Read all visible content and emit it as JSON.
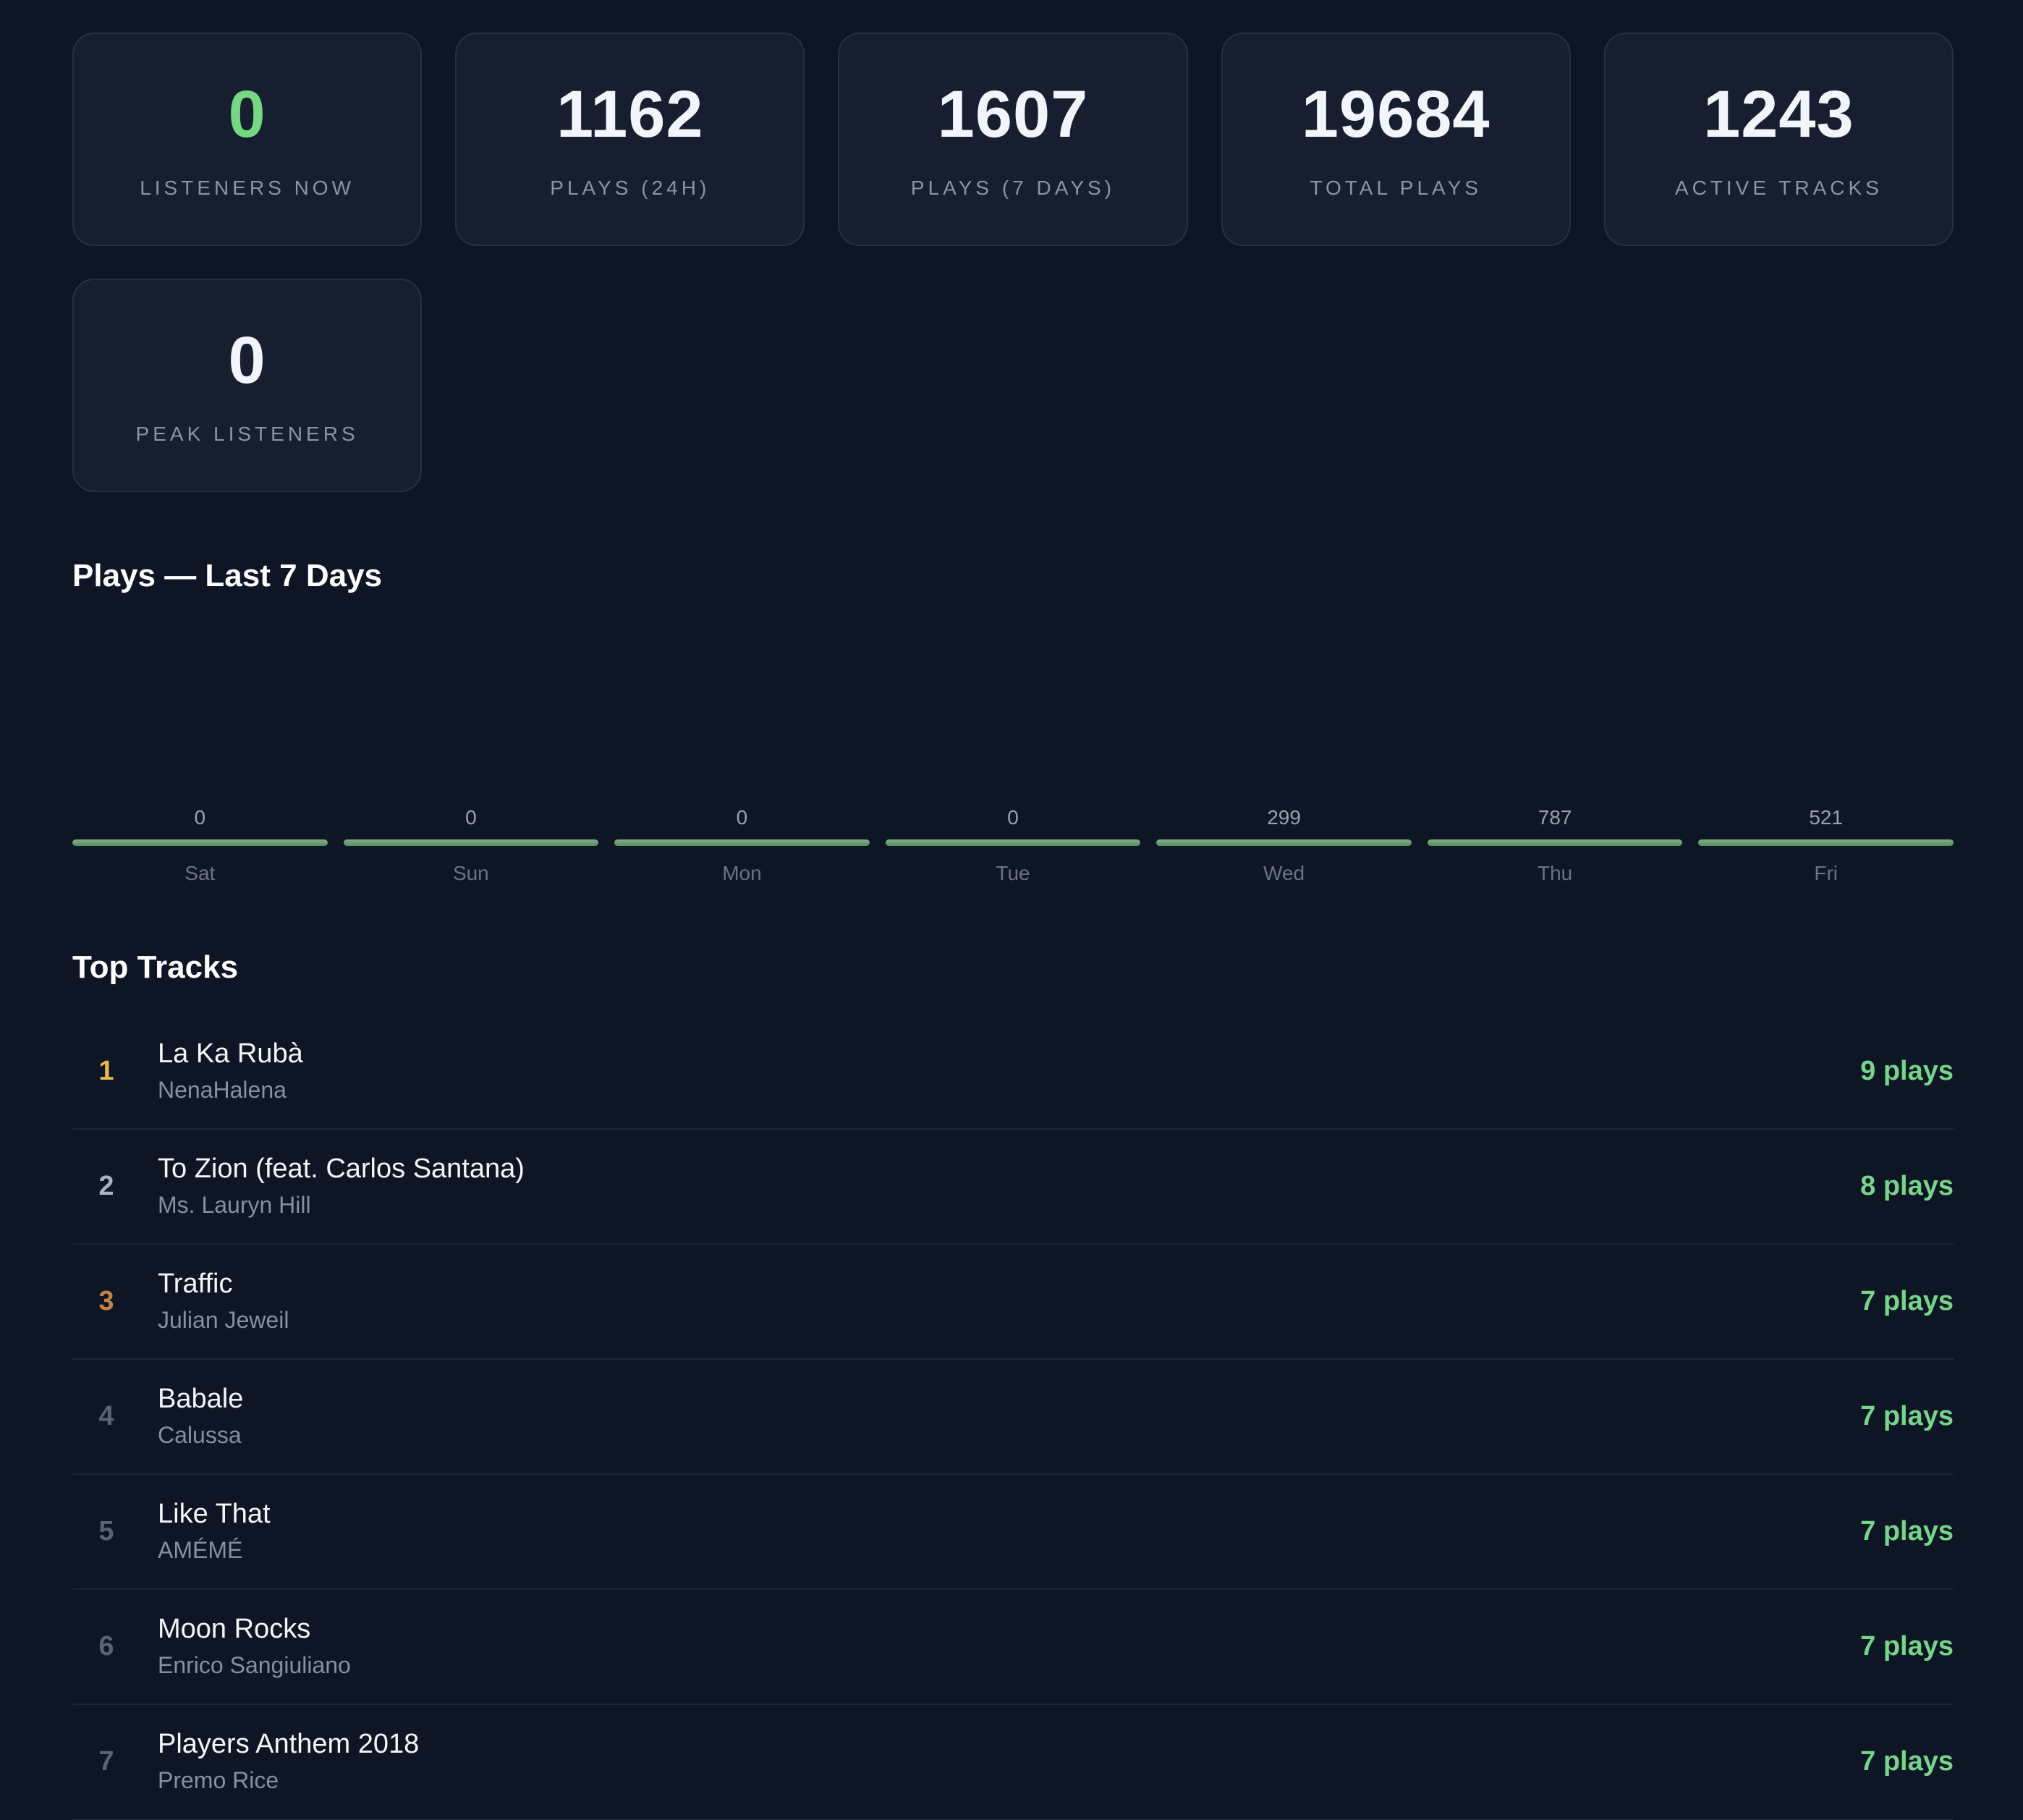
{
  "colors": {
    "page_background": "#0e1524",
    "card_background": "#161e30",
    "card_border": "#262f45",
    "accent_green": "#77d884",
    "bar_green": "#578f63",
    "plays_green": "#74d688",
    "rank_gold": "#e9b94e",
    "rank_silver": "#a7b4c6",
    "rank_bronze": "#c5853f",
    "muted_gray": "#8b94a5"
  },
  "stats": {
    "cards": [
      {
        "value": "0",
        "label": "LISTENERS NOW"
      },
      {
        "value": "1162",
        "label": "PLAYS (24H)"
      },
      {
        "value": "1607",
        "label": "PLAYS (7 DAYS)"
      },
      {
        "value": "19684",
        "label": "TOTAL PLAYS"
      },
      {
        "value": "1243",
        "label": "ACTIVE TRACKS"
      },
      {
        "value": "0",
        "label": "PEAK LISTENERS"
      }
    ]
  },
  "chart_section": {
    "title": "Plays — Last 7 Days"
  },
  "chart_data": {
    "type": "bar",
    "title": "Plays — Last 7 Days",
    "categories": [
      "Sat",
      "Sun",
      "Mon",
      "Tue",
      "Wed",
      "Thu",
      "Fri"
    ],
    "values": [
      0,
      0,
      0,
      0,
      299,
      787,
      521
    ],
    "xlabel": "",
    "ylabel": "",
    "grid": false,
    "legend": false,
    "layout_note": "each day shows its numeric value above a uniform thin green bar with the day label below"
  },
  "top_tracks": {
    "title": "Top Tracks",
    "rows": [
      {
        "rank": "1",
        "title": "La Ka Rubà",
        "artist": "NenaHalena",
        "plays": "9 plays"
      },
      {
        "rank": "2",
        "title": "To Zion (feat. Carlos Santana)",
        "artist": "Ms. Lauryn Hill",
        "plays": "8 plays"
      },
      {
        "rank": "3",
        "title": "Traffic",
        "artist": "Julian Jeweil",
        "plays": "7 plays"
      },
      {
        "rank": "4",
        "title": "Babale",
        "artist": "Calussa",
        "plays": "7 plays"
      },
      {
        "rank": "5",
        "title": "Like That",
        "artist": "AMÉMÉ",
        "plays": "7 plays"
      },
      {
        "rank": "6",
        "title": "Moon Rocks",
        "artist": "Enrico Sangiuliano",
        "plays": "7 plays"
      },
      {
        "rank": "7",
        "title": "Players Anthem 2018",
        "artist": "Premo Rice",
        "plays": "7 plays"
      }
    ]
  }
}
